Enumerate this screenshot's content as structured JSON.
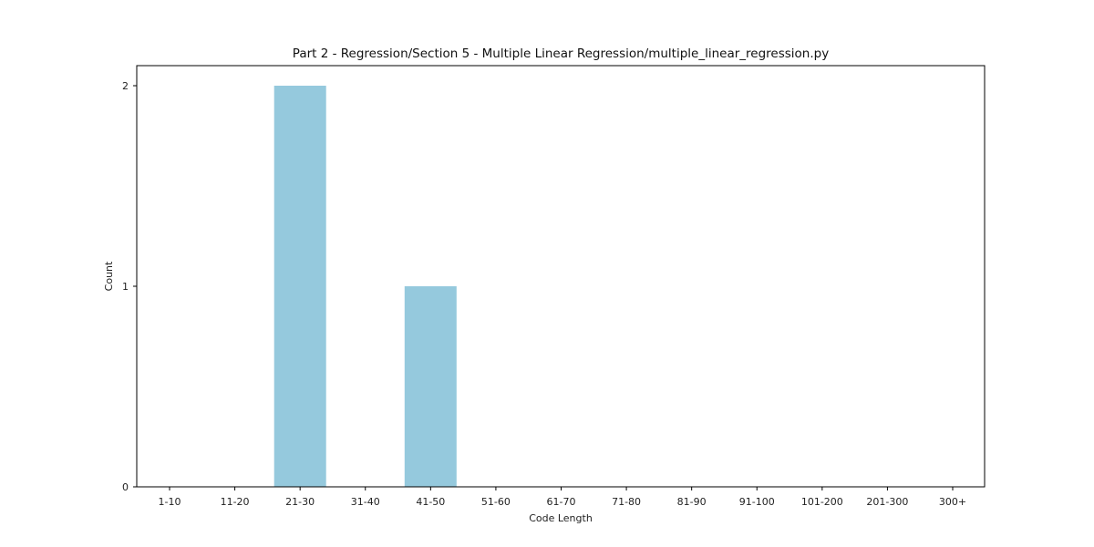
{
  "chart_data": {
    "type": "bar",
    "title": "Part 2 - Regression/Section 5 - Multiple Linear Regression/multiple_linear_regression.py",
    "xlabel": "Code Length",
    "ylabel": "Count",
    "categories": [
      "1-10",
      "11-20",
      "21-30",
      "31-40",
      "41-50",
      "51-60",
      "61-70",
      "71-80",
      "81-90",
      "91-100",
      "101-200",
      "201-300",
      "300+"
    ],
    "values": [
      0,
      0,
      2,
      0,
      1,
      0,
      0,
      0,
      0,
      0,
      0,
      0,
      0
    ],
    "ylim": [
      0,
      2.1
    ],
    "yticks": [
      0,
      1,
      2
    ],
    "bar_color": "#95c9dd",
    "grid": false,
    "legend": "none"
  }
}
